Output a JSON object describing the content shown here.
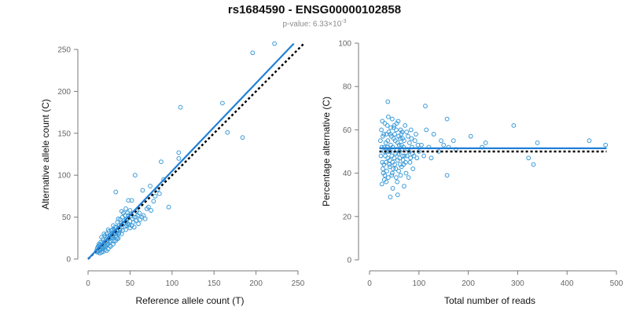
{
  "page": {
    "title": "rs1684590 - ENSG00000102858",
    "subtitle_prefix": "p-value: 6.33×10",
    "subtitle_exp": "-3"
  },
  "colors": {
    "points": "#3a9ad9",
    "fit_line": "#1f7fd6",
    "reference_line": "#000000",
    "axis": "#7a7a7a"
  },
  "chart_data": [
    {
      "type": "scatter",
      "xlabel": "Reference allele count (T)",
      "ylabel": "Alternative allele count (C)",
      "xlim": [
        0,
        250
      ],
      "ylim": [
        0,
        250
      ],
      "xticks": [
        0,
        50,
        100,
        150,
        200,
        250
      ],
      "yticks": [
        0,
        50,
        100,
        150,
        200,
        250
      ],
      "points": [
        [
          222,
          257
        ],
        [
          196,
          246
        ],
        [
          110,
          181
        ],
        [
          160,
          186
        ],
        [
          166,
          151
        ],
        [
          184,
          145
        ],
        [
          108,
          127
        ],
        [
          108,
          120
        ],
        [
          87,
          116
        ],
        [
          90,
          95
        ],
        [
          96,
          62
        ],
        [
          56,
          100
        ],
        [
          33,
          80
        ],
        [
          48,
          70
        ],
        [
          52,
          70
        ],
        [
          40,
          57
        ],
        [
          45,
          60
        ],
        [
          58,
          57
        ],
        [
          65,
          82
        ],
        [
          74,
          87
        ],
        [
          55,
          50
        ],
        [
          50,
          45
        ],
        [
          45,
          45
        ],
        [
          42,
          42
        ],
        [
          40,
          38
        ],
        [
          38,
          36
        ],
        [
          36,
          30
        ],
        [
          35,
          33
        ],
        [
          33,
          28
        ],
        [
          32,
          30
        ],
        [
          30,
          27
        ],
        [
          29,
          25
        ],
        [
          28,
          26
        ],
        [
          27,
          22
        ],
        [
          26,
          20
        ],
        [
          25,
          24
        ],
        [
          24,
          18
        ],
        [
          23,
          17
        ],
        [
          22,
          20
        ],
        [
          21,
          15
        ],
        [
          20,
          16
        ],
        [
          19,
          14
        ],
        [
          18,
          13
        ],
        [
          18,
          17
        ],
        [
          17,
          12
        ],
        [
          16,
          14
        ],
        [
          15,
          11
        ],
        [
          14,
          10
        ],
        [
          13,
          12
        ],
        [
          12,
          9
        ],
        [
          11,
          8
        ],
        [
          10,
          10
        ],
        [
          22,
          30
        ],
        [
          25,
          33
        ],
        [
          28,
          34
        ],
        [
          30,
          40
        ],
        [
          32,
          38
        ],
        [
          35,
          44
        ],
        [
          38,
          47
        ],
        [
          41,
          50
        ],
        [
          44,
          52
        ],
        [
          47,
          55
        ],
        [
          50,
          58
        ],
        [
          35,
          24
        ],
        [
          40,
          30
        ],
        [
          45,
          35
        ],
        [
          50,
          37
        ],
        [
          52,
          40
        ],
        [
          55,
          38
        ],
        [
          60,
          42
        ],
        [
          62,
          47
        ],
        [
          66,
          52
        ],
        [
          70,
          60
        ],
        [
          75,
          58
        ],
        [
          27,
          15
        ],
        [
          30,
          18
        ],
        [
          33,
          22
        ],
        [
          36,
          25
        ],
        [
          20,
          28
        ],
        [
          18,
          24
        ],
        [
          15,
          20
        ],
        [
          13,
          16
        ],
        [
          16,
          26
        ],
        [
          19,
          30
        ],
        [
          24,
          35
        ],
        [
          26,
          28
        ],
        [
          28,
          31
        ],
        [
          31,
          35
        ],
        [
          34,
          38
        ],
        [
          37,
          40
        ],
        [
          39,
          43
        ],
        [
          43,
          46
        ],
        [
          46,
          48
        ],
        [
          48,
          52
        ],
        [
          51,
          54
        ],
        [
          53,
          48
        ],
        [
          57,
          46
        ],
        [
          59,
          52
        ],
        [
          24,
          12
        ],
        [
          22,
          10
        ],
        [
          20,
          11
        ],
        [
          18,
          9
        ],
        [
          16,
          8
        ],
        [
          14,
          7
        ],
        [
          42,
          55
        ],
        [
          36,
          48
        ],
        [
          29,
          35
        ],
        [
          23,
          27
        ],
        [
          21,
          23
        ],
        [
          17,
          19
        ],
        [
          15,
          17
        ],
        [
          12,
          15
        ],
        [
          11,
          13
        ],
        [
          13,
          18
        ],
        [
          26,
          16
        ],
        [
          31,
          21
        ],
        [
          34,
          26
        ],
        [
          37,
          31
        ],
        [
          41,
          34
        ],
        [
          44,
          39
        ],
        [
          47,
          42
        ],
        [
          49,
          41
        ],
        [
          54,
          44
        ],
        [
          57,
          50
        ],
        [
          61,
          55
        ],
        [
          64,
          50
        ],
        [
          68,
          48
        ],
        [
          72,
          62
        ],
        [
          78,
          69
        ],
        [
          80,
          75
        ],
        [
          83,
          83
        ],
        [
          85,
          78
        ],
        [
          25,
          25
        ],
        [
          27,
          29
        ],
        [
          29,
          28
        ],
        [
          32,
          33
        ],
        [
          34,
          31
        ],
        [
          38,
          34
        ],
        [
          40,
          41
        ],
        [
          46,
          40
        ]
      ],
      "fit_line": [
        [
          0,
          0
        ],
        [
          245,
          257
        ]
      ],
      "reference_line": [
        [
          0,
          0
        ],
        [
          257,
          257
        ]
      ]
    },
    {
      "type": "scatter",
      "xlabel": "Total number of reads",
      "ylabel": "Percentage alternative (C)",
      "xlim": [
        0,
        500
      ],
      "ylim": [
        0,
        100
      ],
      "xticks": [
        0,
        100,
        200,
        300,
        400,
        500
      ],
      "yticks": [
        0,
        20,
        40,
        60,
        80,
        100
      ],
      "points": [
        [
          37,
          73
        ],
        [
          113,
          71
        ],
        [
          157,
          65
        ],
        [
          292,
          62
        ],
        [
          340,
          54
        ],
        [
          445,
          55
        ],
        [
          478,
          53
        ],
        [
          322,
          47
        ],
        [
          332,
          44
        ],
        [
          157,
          39
        ],
        [
          205,
          57
        ],
        [
          228,
          52
        ],
        [
          235,
          54
        ],
        [
          150,
          53
        ],
        [
          170,
          55
        ],
        [
          70,
          34
        ],
        [
          42,
          29
        ],
        [
          57,
          30
        ],
        [
          47,
          33
        ],
        [
          22,
          55
        ],
        [
          24,
          60
        ],
        [
          26,
          45
        ],
        [
          28,
          40
        ],
        [
          30,
          52
        ],
        [
          32,
          48
        ],
        [
          34,
          58
        ],
        [
          36,
          62
        ],
        [
          38,
          38
        ],
        [
          40,
          44
        ],
        [
          42,
          50
        ],
        [
          44,
          57
        ],
        [
          46,
          65
        ],
        [
          48,
          42
        ],
        [
          50,
          47
        ],
        [
          52,
          55
        ],
        [
          54,
          60
        ],
        [
          56,
          36
        ],
        [
          58,
          49
        ],
        [
          60,
          53
        ],
        [
          62,
          44
        ],
        [
          64,
          58
        ],
        [
          66,
          51
        ],
        [
          68,
          46
        ],
        [
          70,
          55
        ],
        [
          72,
          62
        ],
        [
          74,
          40
        ],
        [
          76,
          48
        ],
        [
          78,
          57
        ],
        [
          80,
          50
        ],
        [
          82,
          45
        ],
        [
          84,
          60
        ],
        [
          86,
          52
        ],
        [
          88,
          42
        ],
        [
          90,
          48
        ],
        [
          92,
          55
        ],
        [
          94,
          58
        ],
        [
          96,
          47
        ],
        [
          98,
          53
        ],
        [
          100,
          50
        ],
        [
          25,
          35
        ],
        [
          27,
          42
        ],
        [
          29,
          58
        ],
        [
          31,
          63
        ],
        [
          33,
          45
        ],
        [
          35,
          41
        ],
        [
          37,
          55
        ],
        [
          39,
          50
        ],
        [
          41,
          46
        ],
        [
          43,
          61
        ],
        [
          45,
          39
        ],
        [
          47,
          52
        ],
        [
          49,
          56
        ],
        [
          51,
          44
        ],
        [
          53,
          49
        ],
        [
          55,
          63
        ],
        [
          57,
          54
        ],
        [
          59,
          41
        ],
        [
          61,
          47
        ],
        [
          63,
          60
        ],
        [
          65,
          43
        ],
        [
          67,
          56
        ],
        [
          69,
          52
        ],
        [
          71,
          48
        ],
        [
          73,
          45
        ],
        [
          75,
          59
        ],
        [
          77,
          51
        ],
        [
          79,
          38
        ],
        [
          81,
          54
        ],
        [
          83,
          47
        ],
        [
          85,
          56
        ],
        [
          87,
          49
        ],
        [
          23,
          48
        ],
        [
          25,
          52
        ],
        [
          27,
          57
        ],
        [
          29,
          44
        ],
        [
          31,
          39
        ],
        [
          33,
          54
        ],
        [
          35,
          50
        ],
        [
          37,
          47
        ],
        [
          39,
          59
        ],
        [
          41,
          43
        ],
        [
          43,
          53
        ],
        [
          45,
          48
        ],
        [
          47,
          45
        ],
        [
          49,
          61
        ],
        [
          51,
          58
        ],
        [
          53,
          42
        ],
        [
          55,
          51
        ],
        [
          57,
          46
        ],
        [
          59,
          57
        ],
        [
          61,
          50
        ],
        [
          63,
          39
        ],
        [
          65,
          53
        ],
        [
          67,
          48
        ],
        [
          69,
          44
        ],
        [
          105,
          53
        ],
        [
          110,
          48
        ],
        [
          115,
          60
        ],
        [
          120,
          52
        ],
        [
          125,
          47
        ],
        [
          130,
          58
        ],
        [
          140,
          50
        ],
        [
          145,
          55
        ],
        [
          160,
          52
        ],
        [
          175,
          51
        ],
        [
          26,
          64
        ],
        [
          30,
          37
        ],
        [
          34,
          36
        ],
        [
          38,
          66
        ],
        [
          42,
          58
        ],
        [
          46,
          40
        ],
        [
          50,
          62
        ],
        [
          54,
          38
        ],
        [
          58,
          64
        ],
        [
          62,
          56
        ],
        [
          66,
          59
        ],
        [
          30,
          50
        ],
        [
          36,
          52
        ]
      ],
      "fit_line": [
        [
          20,
          51.5
        ],
        [
          480,
          51.5
        ]
      ],
      "reference_line": [
        [
          20,
          50
        ],
        [
          480,
          50
        ]
      ]
    }
  ]
}
